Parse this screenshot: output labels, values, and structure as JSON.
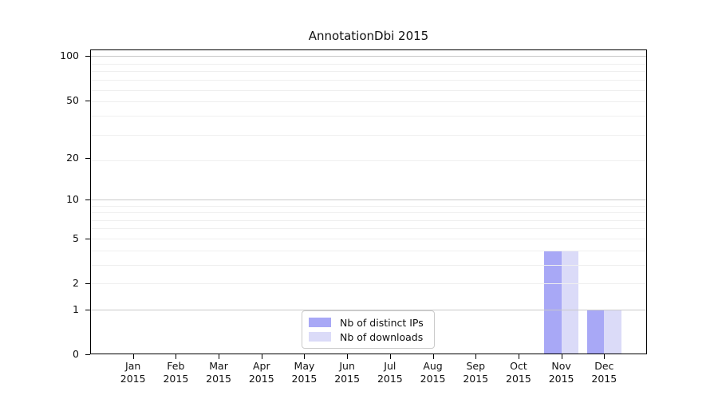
{
  "chart_data": {
    "type": "bar",
    "title": "AnnotationDbi 2015",
    "year_label": "2015",
    "categories": [
      "Jan",
      "Feb",
      "Mar",
      "Apr",
      "May",
      "Jun",
      "Jul",
      "Aug",
      "Sep",
      "Oct",
      "Nov",
      "Dec"
    ],
    "series": [
      {
        "name": "Nb of distinct IPs",
        "color": "#a8a8f6",
        "values": [
          0,
          0,
          0,
          0,
          0,
          0,
          0,
          0,
          0,
          0,
          4,
          1
        ]
      },
      {
        "name": "Nb of downloads",
        "color": "#dbdbf8",
        "values": [
          0,
          0,
          0,
          0,
          0,
          0,
          0,
          0,
          0,
          0,
          4,
          1
        ]
      }
    ],
    "yscale": "log1p",
    "yticks": [
      0,
      1,
      2,
      5,
      10,
      20,
      50,
      100
    ],
    "ylim": [
      0,
      111
    ],
    "grid": true,
    "grid_major_values": [
      1,
      10,
      100
    ],
    "grid_minor_values": [
      2,
      3,
      4,
      5,
      6,
      7,
      8,
      9,
      19,
      29,
      39,
      49,
      59,
      69,
      79,
      89
    ],
    "legend_position": "lower center",
    "colors": {
      "grid_major": "#c9c9c9",
      "grid_minor": "#efefef",
      "frame": "#000000"
    }
  }
}
